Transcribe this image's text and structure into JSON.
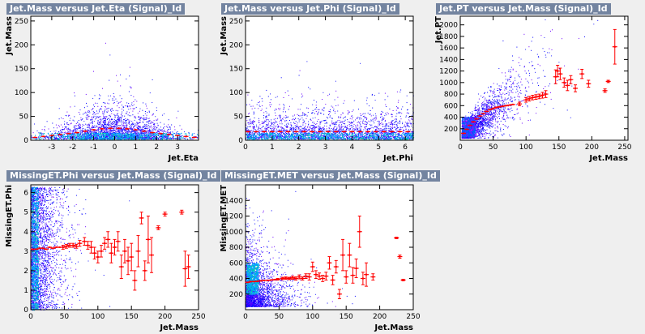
{
  "chart_data": [
    {
      "type": "scatter",
      "title": "Jet.Mass versus Jet.Eta (Signal)_Id",
      "xlabel": "Jet.Eta",
      "ylabel": "Jet.Mass",
      "xlim": [
        -4,
        4
      ],
      "ylim": [
        0,
        260
      ],
      "xticks": [
        -3,
        -2,
        -1,
        0,
        1,
        2,
        3
      ],
      "yticks": [
        0,
        50,
        100,
        150,
        200,
        250
      ],
      "profile_color": "#ff0000",
      "profile": {
        "x": [
          -3.8,
          -3.4,
          -3.0,
          -2.6,
          -2.2,
          -1.8,
          -1.4,
          -1.0,
          -0.6,
          -0.2,
          0.2,
          0.6,
          1.0,
          1.4,
          1.8,
          2.2,
          2.6,
          3.0,
          3.4,
          3.8
        ],
        "y": [
          6,
          8,
          10,
          12,
          14,
          16,
          19,
          22,
          24,
          25,
          25,
          24,
          22,
          19,
          16,
          14,
          12,
          10,
          8,
          6
        ]
      }
    },
    {
      "type": "scatter",
      "title": "Jet.Mass versus Jet.Phi (Signal)_Id",
      "xlabel": "Jet.Phi",
      "ylabel": "Jet.Mass",
      "xlim": [
        0,
        6.3
      ],
      "ylim": [
        0,
        260
      ],
      "xticks": [
        0,
        1,
        2,
        3,
        4,
        5,
        6
      ],
      "yticks": [
        0,
        50,
        100,
        150,
        200,
        250
      ],
      "profile_color": "#ff0000",
      "profile": {
        "x": [
          0.1,
          0.4,
          0.7,
          1.0,
          1.3,
          1.6,
          1.9,
          2.2,
          2.5,
          2.8,
          3.1,
          3.4,
          3.7,
          4.0,
          4.3,
          4.6,
          4.9,
          5.2,
          5.5,
          5.8,
          6.1
        ],
        "y": [
          18,
          18,
          18,
          18,
          18,
          18,
          18,
          18,
          18,
          18,
          18,
          18,
          18,
          18,
          18,
          18,
          18,
          18,
          18,
          18,
          18
        ]
      }
    },
    {
      "type": "scatter",
      "title": "Jet.PT versus Jet.Mass (Signal)_Id",
      "xlabel": "Jet.Mass",
      "ylabel": "Jet.PT",
      "xlim": [
        0,
        255
      ],
      "ylim": [
        0,
        2150
      ],
      "xticks": [
        0,
        50,
        100,
        150,
        200,
        250
      ],
      "yticks": [
        200,
        400,
        600,
        800,
        1000,
        1200,
        1400,
        1600,
        1800,
        2000
      ],
      "profile_color": "#ff0000",
      "profile": {
        "x": [
          5,
          10,
          15,
          20,
          25,
          30,
          35,
          40,
          45,
          50,
          55,
          60,
          65,
          70,
          75,
          80,
          90,
          100,
          105,
          110,
          115,
          120,
          125,
          130,
          145,
          148,
          152,
          158,
          163,
          168,
          175,
          185,
          195,
          220,
          225,
          235
        ],
        "y": [
          120,
          190,
          260,
          320,
          370,
          420,
          460,
          500,
          530,
          550,
          570,
          580,
          590,
          600,
          610,
          620,
          630,
          700,
          720,
          740,
          750,
          760,
          780,
          800,
          1100,
          1200,
          1150,
          1000,
          950,
          1050,
          900,
          1150,
          980,
          860,
          1020,
          1620
        ],
        "err": [
          0,
          0,
          0,
          0,
          0,
          0,
          0,
          0,
          0,
          0,
          0,
          0,
          0,
          0,
          0,
          0,
          30,
          40,
          40,
          40,
          40,
          40,
          50,
          60,
          120,
          100,
          100,
          80,
          90,
          70,
          60,
          80,
          60,
          30,
          20,
          300
        ]
      }
    },
    {
      "type": "scatter",
      "title": "MissingET.Phi versus Jet.Mass (Signal)_Id",
      "xlabel": "Jet.Mass",
      "ylabel": "MissingET.Phi",
      "xlim": [
        0,
        250
      ],
      "ylim": [
        0,
        6.4
      ],
      "xticks": [
        0,
        50,
        100,
        150,
        200,
        250
      ],
      "yticks": [
        0,
        1,
        2,
        3,
        4,
        5,
        6
      ],
      "profile_color": "#ff0000",
      "profile": {
        "x": [
          3,
          8,
          13,
          18,
          23,
          28,
          33,
          38,
          43,
          48,
          53,
          58,
          63,
          68,
          73,
          80,
          85,
          90,
          95,
          100,
          105,
          110,
          115,
          120,
          125,
          130,
          135,
          140,
          145,
          150,
          155,
          160,
          165,
          170,
          175,
          180,
          190,
          200,
          225,
          230,
          235
        ],
        "y": [
          3.1,
          3.1,
          3.15,
          3.15,
          3.1,
          3.2,
          3.15,
          3.2,
          3.2,
          3.2,
          3.25,
          3.3,
          3.3,
          3.25,
          3.4,
          3.5,
          3.3,
          3.2,
          2.9,
          2.7,
          3.0,
          3.4,
          3.6,
          2.9,
          3.2,
          3.5,
          2.2,
          3.0,
          2.5,
          2.7,
          1.5,
          3.0,
          4.7,
          2.0,
          3.6,
          2.8,
          4.2,
          4.9,
          5.0,
          2.1,
          2.2
        ],
        "err": [
          0,
          0,
          0,
          0,
          0,
          0,
          0,
          0,
          0,
          0.1,
          0.1,
          0.1,
          0.1,
          0.1,
          0.15,
          0.2,
          0.2,
          0.3,
          0.3,
          0.3,
          0.3,
          0.3,
          0.4,
          0.5,
          0.4,
          0.5,
          0.6,
          0.6,
          0.7,
          0.7,
          0.5,
          0.8,
          0.3,
          0.5,
          1.2,
          0.9,
          0.1,
          0.1,
          0.1,
          0.9,
          0.6
        ]
      }
    },
    {
      "type": "scatter",
      "title": "MissingET.MET versus Jet.Mass (Signal)_Id",
      "xlabel": "Jet.Mass",
      "ylabel": "MissingET.MET",
      "xlim": [
        0,
        250
      ],
      "ylim": [
        0,
        1600
      ],
      "xticks": [
        0,
        50,
        100,
        150,
        200,
        250
      ],
      "yticks": [
        200,
        400,
        600,
        800,
        1000,
        1200,
        1400
      ],
      "profile_color": "#ff0000",
      "profile": {
        "x": [
          3,
          8,
          13,
          18,
          23,
          28,
          33,
          38,
          43,
          48,
          55,
          60,
          65,
          70,
          75,
          80,
          85,
          90,
          95,
          100,
          105,
          110,
          115,
          120,
          125,
          130,
          135,
          140,
          145,
          150,
          155,
          160,
          165,
          170,
          175,
          180,
          190,
          225,
          230,
          235
        ],
        "y": [
          350,
          360,
          360,
          365,
          370,
          375,
          375,
          380,
          385,
          390,
          400,
          405,
          400,
          410,
          400,
          420,
          400,
          430,
          420,
          550,
          450,
          430,
          400,
          430,
          600,
          380,
          550,
          200,
          700,
          420,
          700,
          440,
          530,
          1000,
          400,
          450,
          420,
          920,
          680,
          380
        ],
        "err": [
          0,
          0,
          0,
          0,
          0,
          0,
          0,
          0,
          0,
          10,
          15,
          15,
          15,
          20,
          20,
          25,
          20,
          30,
          40,
          60,
          50,
          40,
          40,
          50,
          80,
          60,
          80,
          60,
          200,
          80,
          150,
          100,
          120,
          200,
          80,
          150,
          40,
          10,
          20,
          10
        ]
      }
    }
  ]
}
